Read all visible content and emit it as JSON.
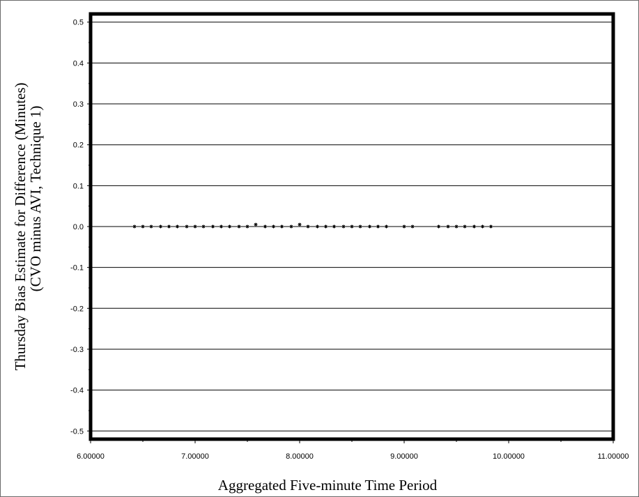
{
  "chart_data": {
    "type": "scatter",
    "title": "",
    "xlabel": "Aggregated Five-minute Time Period",
    "ylabel_lines": [
      "Thursday Bias Estimate for Difference (Minutes)",
      "(CVO minus AVI, Technique 1)"
    ],
    "xlim": [
      6.0,
      11.0
    ],
    "ylim": [
      -0.52,
      0.52
    ],
    "x_ticks": [
      6.0,
      7.0,
      8.0,
      9.0,
      10.0,
      11.0
    ],
    "x_tick_labels": [
      "6.00000",
      "7.00000",
      "8.00000",
      "9.00000",
      "10.00000",
      "11.00000"
    ],
    "y_ticks": [
      0.5,
      0.4,
      0.3,
      0.2,
      0.1,
      0.0,
      -0.1,
      -0.2,
      -0.3,
      -0.4,
      -0.5
    ],
    "y_tick_labels": [
      "0.5",
      "0.4",
      "0.3",
      "0.2",
      "0.1",
      "0.0",
      "-0.1",
      "-0.2",
      "-0.3",
      "-0.4",
      "-0.5"
    ],
    "grid": "horizontal",
    "marker": "asterisk",
    "colors": {
      "frame": "#000000",
      "grid": "#000000",
      "marker": "#000000"
    },
    "points": [
      {
        "x": 6.42,
        "y": 0.0
      },
      {
        "x": 6.5,
        "y": 0.0
      },
      {
        "x": 6.58,
        "y": 0.0
      },
      {
        "x": 6.67,
        "y": 0.0
      },
      {
        "x": 6.75,
        "y": 0.0
      },
      {
        "x": 6.83,
        "y": 0.0
      },
      {
        "x": 6.92,
        "y": 0.0
      },
      {
        "x": 7.0,
        "y": 0.0
      },
      {
        "x": 7.08,
        "y": 0.0
      },
      {
        "x": 7.17,
        "y": 0.0
      },
      {
        "x": 7.25,
        "y": 0.0
      },
      {
        "x": 7.33,
        "y": 0.0
      },
      {
        "x": 7.42,
        "y": 0.0
      },
      {
        "x": 7.5,
        "y": 0.0
      },
      {
        "x": 7.58,
        "y": 0.005
      },
      {
        "x": 7.67,
        "y": 0.0
      },
      {
        "x": 7.75,
        "y": 0.0
      },
      {
        "x": 7.83,
        "y": 0.0
      },
      {
        "x": 7.92,
        "y": 0.0
      },
      {
        "x": 8.0,
        "y": 0.005
      },
      {
        "x": 8.08,
        "y": 0.0
      },
      {
        "x": 8.17,
        "y": 0.0
      },
      {
        "x": 8.25,
        "y": 0.0
      },
      {
        "x": 8.33,
        "y": 0.0
      },
      {
        "x": 8.42,
        "y": 0.0
      },
      {
        "x": 8.5,
        "y": 0.0
      },
      {
        "x": 8.58,
        "y": 0.0
      },
      {
        "x": 8.67,
        "y": 0.0
      },
      {
        "x": 8.75,
        "y": 0.0
      },
      {
        "x": 8.83,
        "y": 0.0
      },
      {
        "x": 9.0,
        "y": 0.0
      },
      {
        "x": 9.08,
        "y": 0.0
      },
      {
        "x": 9.33,
        "y": 0.0
      },
      {
        "x": 9.42,
        "y": 0.0
      },
      {
        "x": 9.5,
        "y": 0.0
      },
      {
        "x": 9.58,
        "y": 0.0
      },
      {
        "x": 9.67,
        "y": 0.0
      },
      {
        "x": 9.75,
        "y": 0.0
      },
      {
        "x": 9.83,
        "y": 0.0
      }
    ]
  }
}
